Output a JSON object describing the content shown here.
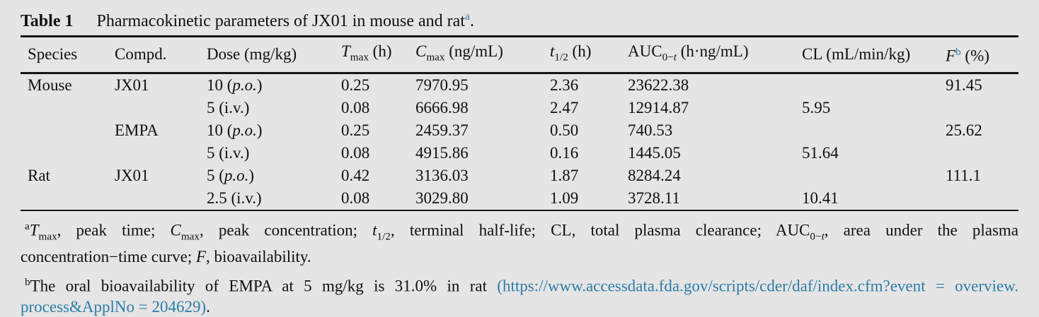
{
  "page": {
    "background": "#e5e5e5",
    "text_color": "#101010",
    "link_color": "#2d7ca9",
    "rule_color": "#151515"
  },
  "caption": {
    "rich": [
      {
        "t": "Table 1",
        "s": "label b",
        "n": "table-number-label"
      },
      {
        "t": "Pharmacokinetic parameters of JX01 in mouse and rat",
        "n": "caption-text"
      },
      {
        "t": "a",
        "s": "sup link",
        "n": "footnote-a-marker"
      },
      {
        "t": "."
      }
    ]
  },
  "table": {
    "columns": [
      [
        {
          "t": "Species"
        }
      ],
      [
        {
          "t": "Compd."
        }
      ],
      [
        {
          "t": "Dose (mg/kg)"
        }
      ],
      [
        {
          "t": "T",
          "s": "i"
        },
        {
          "t": "max",
          "s": "sub"
        },
        {
          "t": " (h)"
        }
      ],
      [
        {
          "t": "C",
          "s": "i"
        },
        {
          "t": "max",
          "s": "sub"
        },
        {
          "t": " (ng/mL)"
        }
      ],
      [
        {
          "t": "t",
          "s": "i"
        },
        {
          "t": "1/2",
          "s": "sub"
        },
        {
          "t": " (h)"
        }
      ],
      [
        {
          "t": "AUC"
        },
        {
          "t": "0−",
          "s": "sub"
        },
        {
          "t": "t",
          "s": "sub i"
        },
        {
          "t": " (h·ng/mL)"
        }
      ],
      [
        {
          "t": "CL (mL/min/kg)"
        }
      ],
      [
        {
          "t": "F",
          "s": "i"
        },
        {
          "t": "b",
          "s": "sup link",
          "n": "footnote-b-marker"
        },
        {
          "t": " (%)"
        }
      ]
    ],
    "rows": [
      [
        [
          {
            "t": "Mouse"
          }
        ],
        [
          {
            "t": "JX01"
          }
        ],
        [
          {
            "t": "10 ("
          },
          {
            "t": "p.o.",
            "s": "i"
          },
          {
            "t": ")"
          }
        ],
        [
          {
            "t": "0.25"
          }
        ],
        [
          {
            "t": "7970.95"
          }
        ],
        [
          {
            "t": "2.36"
          }
        ],
        [
          {
            "t": "23622.38"
          }
        ],
        [],
        [
          {
            "t": "91.45"
          }
        ]
      ],
      [
        [],
        [],
        [
          {
            "t": "5 (i.v.)"
          }
        ],
        [
          {
            "t": "0.08"
          }
        ],
        [
          {
            "t": "6666.98"
          }
        ],
        [
          {
            "t": "2.47"
          }
        ],
        [
          {
            "t": "12914.87"
          }
        ],
        [
          {
            "t": "5.95"
          }
        ],
        []
      ],
      [
        [],
        [
          {
            "t": "EMPA"
          }
        ],
        [
          {
            "t": "10 ("
          },
          {
            "t": "p.o.",
            "s": "i"
          },
          {
            "t": ")"
          }
        ],
        [
          {
            "t": "0.25"
          }
        ],
        [
          {
            "t": "2459.37"
          }
        ],
        [
          {
            "t": "0.50"
          }
        ],
        [
          {
            "t": "740.53"
          }
        ],
        [],
        [
          {
            "t": "25.62"
          }
        ]
      ],
      [
        [],
        [],
        [
          {
            "t": "5 (i.v.)"
          }
        ],
        [
          {
            "t": "0.08"
          }
        ],
        [
          {
            "t": "4915.86"
          }
        ],
        [
          {
            "t": "0.16"
          }
        ],
        [
          {
            "t": "1445.05"
          }
        ],
        [
          {
            "t": "51.64"
          }
        ],
        []
      ],
      [
        [
          {
            "t": "Rat"
          }
        ],
        [
          {
            "t": "JX01"
          }
        ],
        [
          {
            "t": "5 ("
          },
          {
            "t": "p.o.",
            "s": "i"
          },
          {
            "t": ")"
          }
        ],
        [
          {
            "t": "0.42"
          }
        ],
        [
          {
            "t": "3136.03"
          }
        ],
        [
          {
            "t": "1.87"
          }
        ],
        [
          {
            "t": "8284.24"
          }
        ],
        [],
        [
          {
            "t": "111.1"
          }
        ]
      ],
      [
        [],
        [],
        [
          {
            "t": "2.5 (i.v.)"
          }
        ],
        [
          {
            "t": "0.08"
          }
        ],
        [
          {
            "t": "3029.80"
          }
        ],
        [
          {
            "t": "1.09"
          }
        ],
        [
          {
            "t": "3728.11"
          }
        ],
        [
          {
            "t": "10.41"
          }
        ],
        []
      ]
    ]
  },
  "footnotes": {
    "a": {
      "line1": [
        {
          "t": "a",
          "s": "sup",
          "n": "footnote-a-superscript"
        },
        {
          "t": "T",
          "s": "i"
        },
        {
          "t": "max",
          "s": "sub"
        },
        {
          "t": ", peak time; "
        },
        {
          "t": "C",
          "s": "i"
        },
        {
          "t": "max",
          "s": "sub"
        },
        {
          "t": ", peak concentration; "
        },
        {
          "t": "t",
          "s": "i"
        },
        {
          "t": "1/2",
          "s": "sub"
        },
        {
          "t": ", terminal half-life; CL, total plasma clearance; AUC"
        },
        {
          "t": "0−",
          "s": "sub"
        },
        {
          "t": "t",
          "s": "sub i"
        },
        {
          "t": ", area under the plasma"
        }
      ],
      "line2": [
        {
          "t": "concentration−time curve; "
        },
        {
          "t": "F",
          "s": "i"
        },
        {
          "t": ", bioavailability."
        }
      ]
    },
    "b": {
      "line1": [
        {
          "t": "b",
          "s": "sup",
          "n": "footnote-b-superscript"
        },
        {
          "t": "The oral bioavailability of EMPA at 5 mg/kg is 31.0% in rat "
        },
        {
          "t": "(https://www.accessdata.fda.gov/scripts/cder/daf/index.cfm?event = overview.",
          "s": "link",
          "n": "fda-url-link",
          "x": true
        }
      ],
      "line2": [
        {
          "t": "process&ApplNo = 204629)",
          "s": "link",
          "n": "fda-url-link",
          "x": true
        },
        {
          "t": "."
        }
      ]
    }
  }
}
